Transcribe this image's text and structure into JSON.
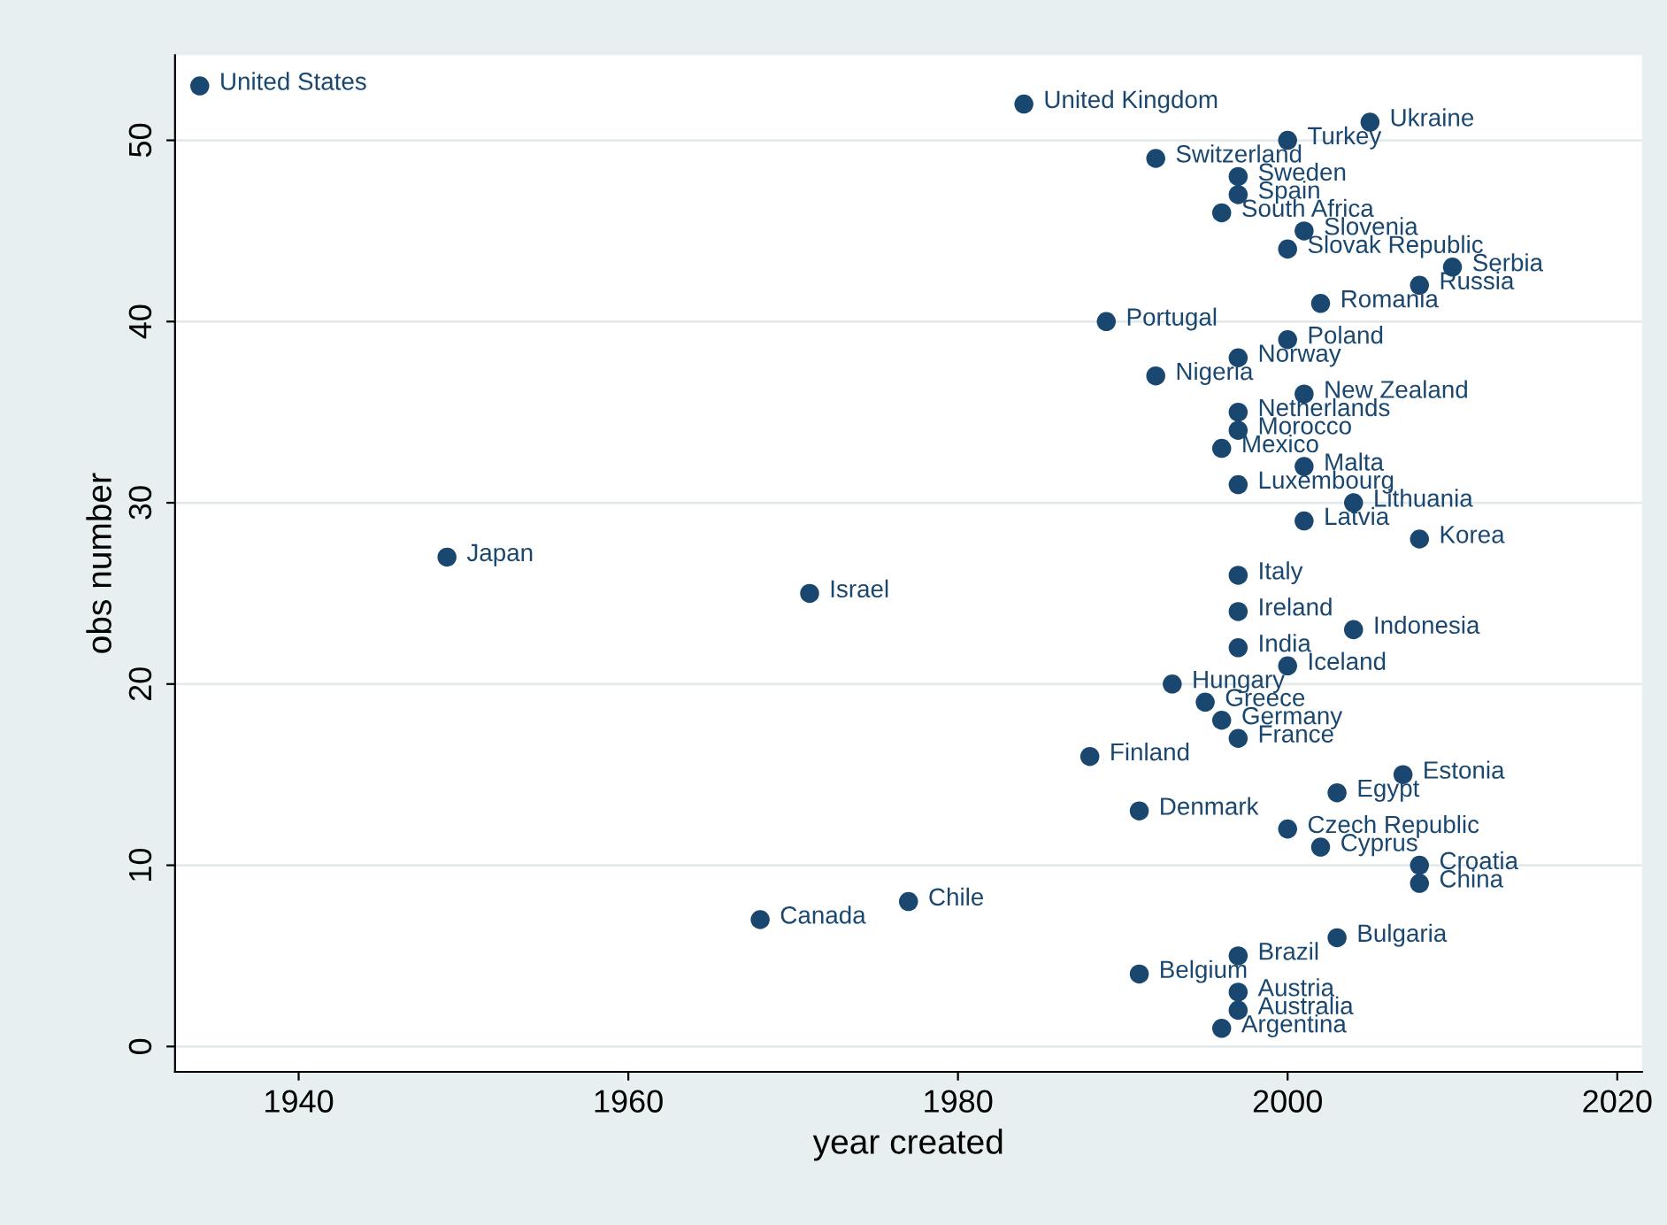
{
  "chart_data": {
    "type": "scatter",
    "xlabel": "year created",
    "ylabel": "obs number",
    "xlim": [
      1932.5,
      2021.5
    ],
    "xticks": [
      1940,
      1960,
      1980,
      2000,
      2020
    ],
    "ylim": [
      -1.4,
      54.7
    ],
    "yticks": [
      0,
      10,
      20,
      30,
      40,
      50
    ],
    "grid": "y",
    "marker": "circle",
    "series": [
      {
        "color": "#1a476f",
        "x": [
          1934,
          1984,
          2005,
          2000,
          1992,
          1997,
          1997,
          1996,
          2001,
          2000,
          2010,
          2008,
          2002,
          1989,
          2000,
          1997,
          1992,
          2001,
          1997,
          1997,
          1996,
          2001,
          1997,
          2004,
          2001,
          2008,
          1949,
          1997,
          1971,
          1997,
          2004,
          1997,
          2000,
          1993,
          1995,
          1996,
          1997,
          1988,
          2007,
          2003,
          1991,
          2000,
          2002,
          2008,
          2008,
          1977,
          1968,
          2003,
          1997,
          1991,
          1997,
          1997,
          1996
        ],
        "values": [
          53,
          52,
          51,
          50,
          49,
          48,
          47,
          46,
          45,
          44,
          43,
          42,
          41,
          40,
          39,
          38,
          37,
          36,
          35,
          34,
          33,
          32,
          31,
          30,
          29,
          28,
          27,
          26,
          25,
          24,
          23,
          22,
          21,
          20,
          19,
          18,
          17,
          16,
          15,
          14,
          13,
          12,
          11,
          10,
          9,
          8,
          7,
          6,
          5,
          4,
          3,
          2,
          1
        ]
      }
    ],
    "annotations": [
      {
        "text": "United States",
        "x": 1934,
        "y": 53
      },
      {
        "text": "United Kingdom",
        "x": 1984,
        "y": 52
      },
      {
        "text": "Ukraine",
        "x": 2005,
        "y": 51
      },
      {
        "text": "Turkey",
        "x": 2000,
        "y": 50
      },
      {
        "text": "Switzerland",
        "x": 1992,
        "y": 49
      },
      {
        "text": "Sweden",
        "x": 1997,
        "y": 48
      },
      {
        "text": "Spain",
        "x": 1997,
        "y": 47
      },
      {
        "text": "South Africa",
        "x": 1996,
        "y": 46
      },
      {
        "text": "Slovenia",
        "x": 2001,
        "y": 45
      },
      {
        "text": "Slovak Republic",
        "x": 2000,
        "y": 44
      },
      {
        "text": "Serbia",
        "x": 2010,
        "y": 43
      },
      {
        "text": "Russia",
        "x": 2008,
        "y": 42
      },
      {
        "text": "Romania",
        "x": 2002,
        "y": 41
      },
      {
        "text": "Portugal",
        "x": 1989,
        "y": 40
      },
      {
        "text": "Poland",
        "x": 2000,
        "y": 39
      },
      {
        "text": "Norway",
        "x": 1997,
        "y": 38
      },
      {
        "text": "Nigeria",
        "x": 1992,
        "y": 37
      },
      {
        "text": "New Zealand",
        "x": 2001,
        "y": 36
      },
      {
        "text": "Netherlands",
        "x": 1997,
        "y": 35
      },
      {
        "text": "Morocco",
        "x": 1997,
        "y": 34
      },
      {
        "text": "Mexico",
        "x": 1996,
        "y": 33
      },
      {
        "text": "Malta",
        "x": 2001,
        "y": 32
      },
      {
        "text": "Luxembourg",
        "x": 1997,
        "y": 31
      },
      {
        "text": "Lithuania",
        "x": 2004,
        "y": 30
      },
      {
        "text": "Latvia",
        "x": 2001,
        "y": 29
      },
      {
        "text": "Korea",
        "x": 2008,
        "y": 28
      },
      {
        "text": "Japan",
        "x": 1949,
        "y": 27
      },
      {
        "text": "Italy",
        "x": 1997,
        "y": 26
      },
      {
        "text": "Israel",
        "x": 1971,
        "y": 25
      },
      {
        "text": "Ireland",
        "x": 1997,
        "y": 24
      },
      {
        "text": "Indonesia",
        "x": 2004,
        "y": 23
      },
      {
        "text": "India",
        "x": 1997,
        "y": 22
      },
      {
        "text": "Iceland",
        "x": 2000,
        "y": 21
      },
      {
        "text": "Hungary",
        "x": 1993,
        "y": 20
      },
      {
        "text": "Greece",
        "x": 1995,
        "y": 19
      },
      {
        "text": "Germany",
        "x": 1996,
        "y": 18
      },
      {
        "text": "France",
        "x": 1997,
        "y": 17
      },
      {
        "text": "Finland",
        "x": 1988,
        "y": 16
      },
      {
        "text": "Estonia",
        "x": 2007,
        "y": 15
      },
      {
        "text": "Egypt",
        "x": 2003,
        "y": 14
      },
      {
        "text": "Denmark",
        "x": 1991,
        "y": 13
      },
      {
        "text": "Czech Republic",
        "x": 2000,
        "y": 12
      },
      {
        "text": "Cyprus",
        "x": 2002,
        "y": 11
      },
      {
        "text": "Croatia",
        "x": 2008,
        "y": 10
      },
      {
        "text": "China",
        "x": 2008,
        "y": 9
      },
      {
        "text": "Chile",
        "x": 1977,
        "y": 8
      },
      {
        "text": "Canada",
        "x": 1968,
        "y": 7
      },
      {
        "text": "Bulgaria",
        "x": 2003,
        "y": 6
      },
      {
        "text": "Brazil",
        "x": 1997,
        "y": 5
      },
      {
        "text": "Belgium",
        "x": 1991,
        "y": 4
      },
      {
        "text": "Austria",
        "x": 1997,
        "y": 3
      },
      {
        "text": "Australia",
        "x": 1997,
        "y": 2
      },
      {
        "text": "Argentina",
        "x": 1996,
        "y": 1
      }
    ]
  }
}
